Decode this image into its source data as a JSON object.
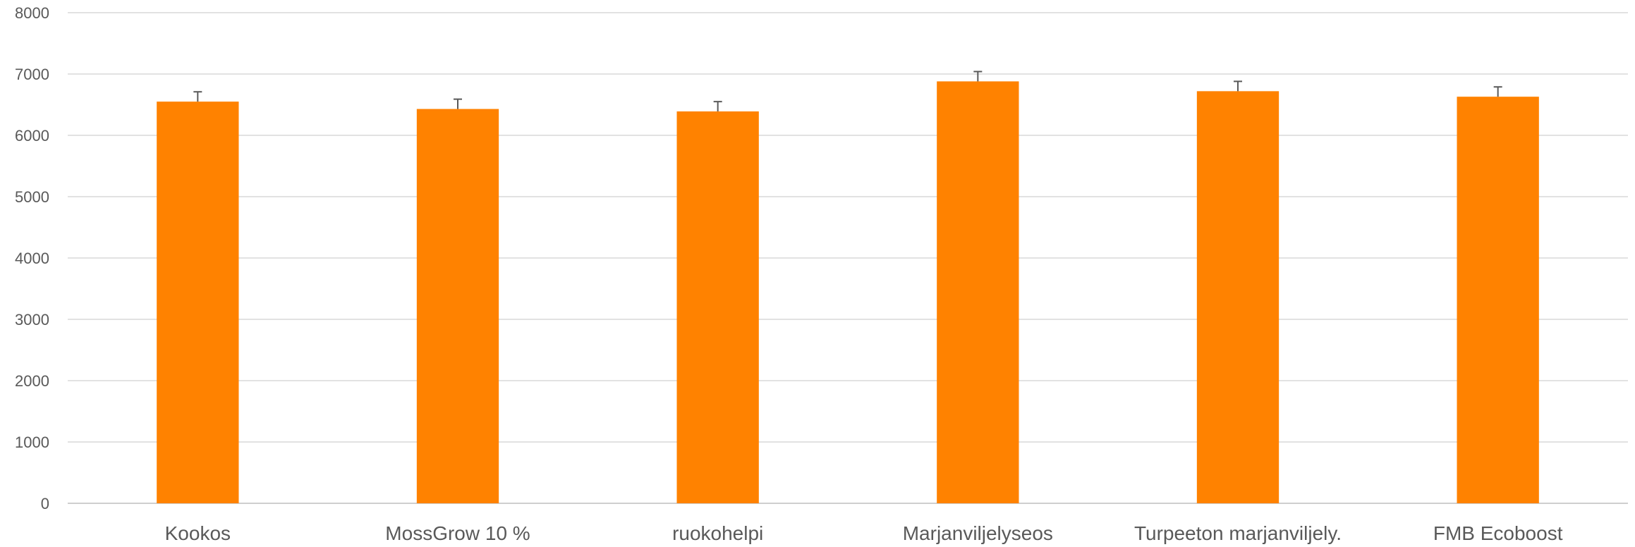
{
  "chart_data": {
    "type": "bar",
    "title": "",
    "xlabel": "",
    "ylabel": "",
    "categories": [
      "Kookos",
      "MossGrow 10 %",
      "ruokohelpi",
      "Marjanviljelyseos",
      "Turpeeton marjanviljely.",
      "FMB Ecoboost"
    ],
    "series": [
      {
        "values": [
          6550,
          6430,
          6390,
          6880,
          6720,
          6630
        ],
        "error_plus": [
          160,
          160,
          160,
          160,
          160,
          160
        ]
      }
    ],
    "ylim": [
      0,
      8000
    ],
    "yticks": [
      0,
      1000,
      2000,
      3000,
      4000,
      5000,
      6000,
      7000,
      8000
    ],
    "grid": true,
    "legend": "none",
    "bar_color": "#FF8200"
  }
}
